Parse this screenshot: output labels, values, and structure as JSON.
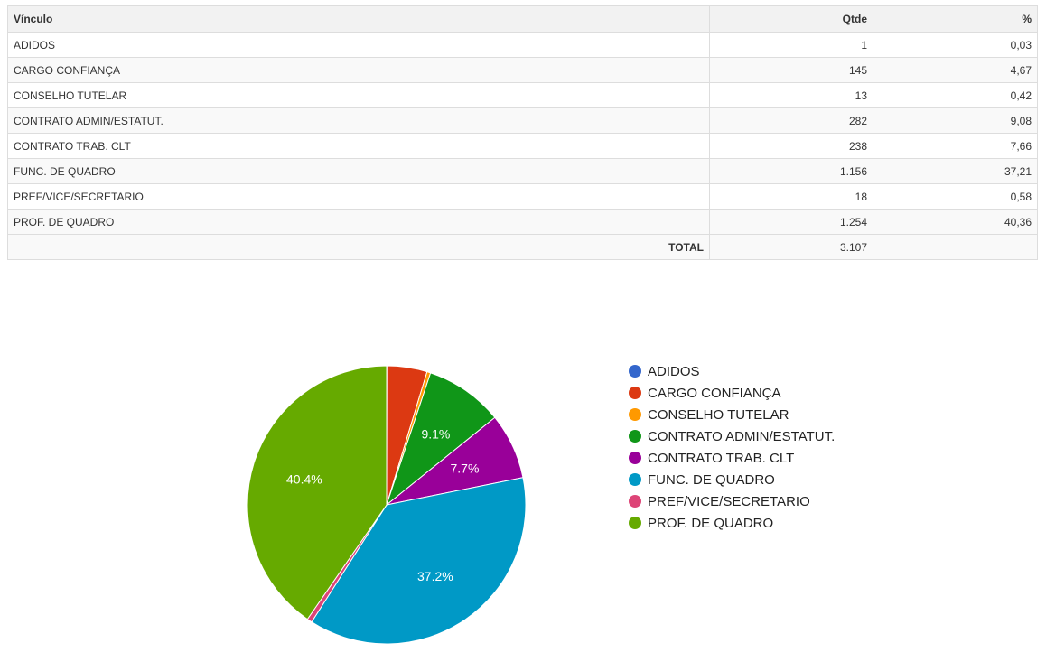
{
  "table": {
    "headers": {
      "vinculo": "Vínculo",
      "qtde": "Qtde",
      "pct": "%"
    },
    "rows": [
      {
        "vinculo": "ADIDOS",
        "qtde": "1",
        "pct": "0,03"
      },
      {
        "vinculo": "CARGO CONFIANÇA",
        "qtde": "145",
        "pct": "4,67"
      },
      {
        "vinculo": "CONSELHO TUTELAR",
        "qtde": "13",
        "pct": "0,42"
      },
      {
        "vinculo": "CONTRATO ADMIN/ESTATUT.",
        "qtde": "282",
        "pct": "9,08"
      },
      {
        "vinculo": "CONTRATO TRAB. CLT",
        "qtde": "238",
        "pct": "7,66"
      },
      {
        "vinculo": "FUNC. DE QUADRO",
        "qtde": "1.156",
        "pct": "37,21"
      },
      {
        "vinculo": "PREF/VICE/SECRETARIO",
        "qtde": "18",
        "pct": "0,58"
      },
      {
        "vinculo": "PROF. DE QUADRO",
        "qtde": "1.254",
        "pct": "40,36"
      }
    ],
    "total": {
      "label": "TOTAL",
      "qtde": "3.107",
      "pct": ""
    }
  },
  "chart_data": {
    "type": "pie",
    "categories": [
      "ADIDOS",
      "CARGO CONFIANÇA",
      "CONSELHO TUTELAR",
      "CONTRATO ADMIN/ESTATUT.",
      "CONTRATO TRAB. CLT",
      "FUNC. DE QUADRO",
      "PREF/VICE/SECRETARIO",
      "PROF. DE QUADRO"
    ],
    "values": [
      1,
      145,
      13,
      282,
      238,
      1156,
      18,
      1254
    ],
    "colors": [
      "#3366cc",
      "#dc3912",
      "#ff9900",
      "#109618",
      "#990099",
      "#0099c6",
      "#dd4477",
      "#66aa00"
    ],
    "data_labels": [
      "",
      "",
      "",
      "9.1%",
      "7.7%",
      "37.2%",
      "",
      "40.4%"
    ],
    "legend_position": "right",
    "title": ""
  }
}
